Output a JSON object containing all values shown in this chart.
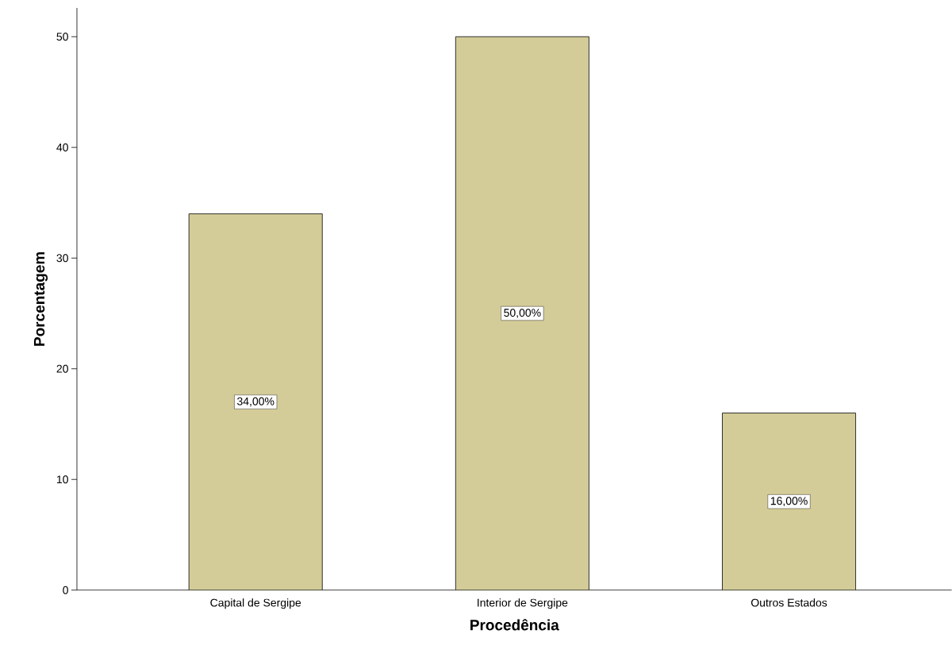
{
  "chart_data": {
    "type": "bar",
    "xlabel": "Procedência",
    "ylabel": "Porcentagem",
    "categories": [
      "Capital de Sergipe",
      "Interior de Sergipe",
      "Outros Estados"
    ],
    "values": [
      34,
      50,
      16
    ],
    "value_labels": [
      "34,00%",
      "50,00%",
      "16,00%"
    ],
    "color": "#d3cc98",
    "ylim": [
      0,
      52.6
    ],
    "yticks": [
      0,
      10,
      20,
      30,
      40,
      50
    ]
  }
}
